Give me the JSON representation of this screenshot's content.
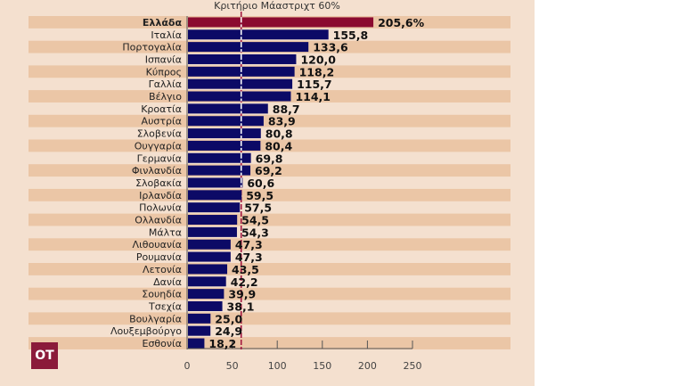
{
  "chart_data": {
    "type": "bar",
    "orientation": "horizontal",
    "title": "Κριτήριο Μάαστριχτ 60%",
    "reference_line": 60,
    "categories": [
      "Ελλάδα",
      "Ιταλία",
      "Πορτογαλία",
      "Ισπανία",
      "Κύπρος",
      "Γαλλία",
      "Βέλγιο",
      "Κροατία",
      "Αυστρία",
      "Σλοβενία",
      "Ουγγαρία",
      "Γερμανία",
      "Φινλανδία",
      "Σλοβακία",
      "Ιρλανδία",
      "Πολωνία",
      "Ολλανδία",
      "Μάλτα",
      "Λιθουανία",
      "Ρουμανία",
      "Λετονία",
      "Δανία",
      "Σουηδία",
      "Τσεχία",
      "Βουλγαρία",
      "Λουξεμβούργο",
      "Εσθονία"
    ],
    "values": [
      205.6,
      155.8,
      133.6,
      120.0,
      118.2,
      115.7,
      114.1,
      88.7,
      83.9,
      80.8,
      80.4,
      69.8,
      69.2,
      60.6,
      59.5,
      57.5,
      54.5,
      54.3,
      47.3,
      47.3,
      43.5,
      42.2,
      39.9,
      38.1,
      25.0,
      24.9,
      18.2
    ],
    "value_labels": [
      "205,6%",
      "155,8",
      "133,6",
      "120,0",
      "118,2",
      "115,7",
      "114,1",
      "88,7",
      "83,9",
      "80,8",
      "80,4",
      "69,8",
      "69,2",
      "60,6",
      "59,5",
      "57,5",
      "54,5",
      "54,3",
      "47,3",
      "47,3",
      "43,5",
      "42,2",
      "39,9",
      "38,1",
      "25,0",
      "24,9",
      "18,2"
    ],
    "xlim": [
      0,
      250
    ],
    "xticks": [
      "0",
      "50",
      "100",
      "150",
      "200",
      "250"
    ],
    "xtick_values": [
      0,
      50,
      100,
      150,
      200,
      250
    ],
    "highlight_index": 0,
    "colors": {
      "bar": "#0c0a66",
      "highlight": "#8b0a30",
      "stripe": "#ebc6a6",
      "background": "#f4e0cf",
      "reference": "#a3173f"
    }
  },
  "logo": "OT"
}
